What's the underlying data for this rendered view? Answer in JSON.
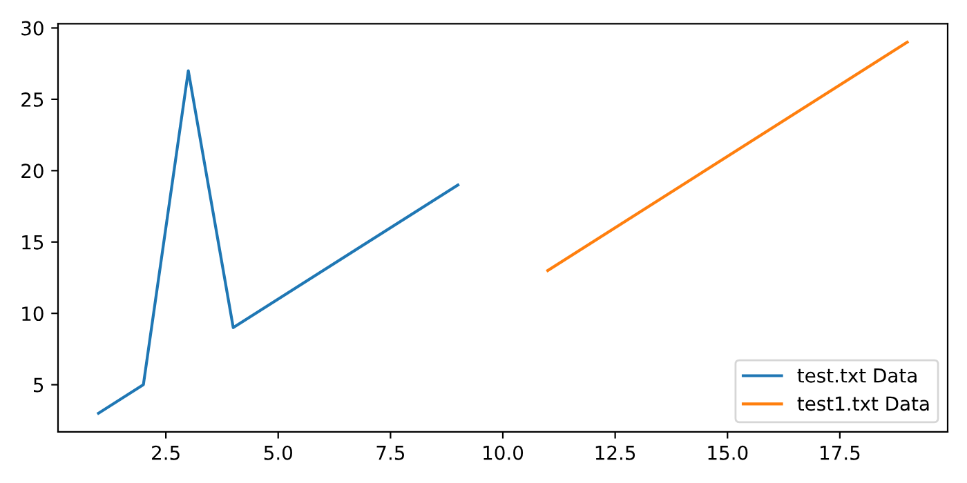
{
  "chart_data": {
    "type": "line",
    "legend": "bottom right",
    "grid": false,
    "series": [
      {
        "name": "test.txt Data",
        "color": "#1f77b4",
        "x": [
          1,
          2,
          3,
          4,
          9
        ],
        "values": [
          3,
          5,
          27,
          9,
          19
        ]
      },
      {
        "name": "test1.txt Data",
        "color": "#ff7f0e",
        "x": [
          11,
          19
        ],
        "values": [
          13,
          29
        ]
      }
    ],
    "xlim": [
      0.1,
      19.9
    ],
    "xticks": [
      2.5,
      {
        "value": 5,
        "label": "5.0"
      },
      7.5,
      {
        "value": 10,
        "label": "10.0"
      },
      12.5,
      {
        "value": 15,
        "label": "15.0"
      },
      17.5
    ],
    "ylim": [
      1.7,
      30.3
    ],
    "yticks": [
      5,
      10,
      15,
      20,
      25,
      30
    ]
  }
}
